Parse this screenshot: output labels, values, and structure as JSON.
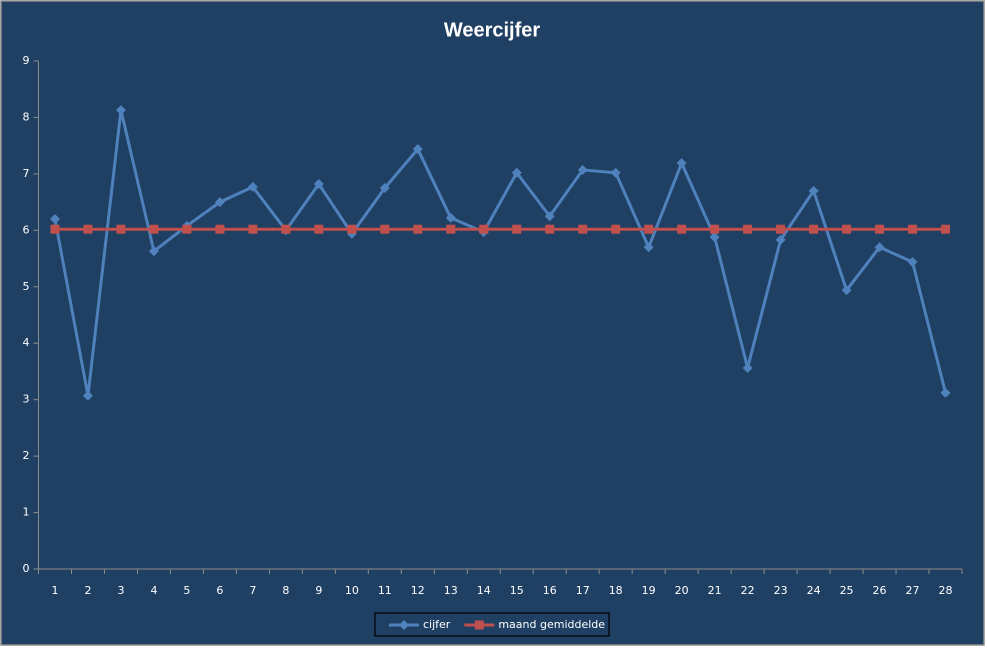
{
  "chart_data": {
    "type": "line",
    "title": "Weercijfer",
    "categories": [
      "1",
      "2",
      "3",
      "4",
      "5",
      "6",
      "7",
      "8",
      "9",
      "10",
      "11",
      "12",
      "13",
      "14",
      "15",
      "16",
      "17",
      "18",
      "19",
      "20",
      "21",
      "22",
      "23",
      "24",
      "25",
      "26",
      "27",
      "28"
    ],
    "series": [
      {
        "name": "cijfer",
        "color": "#4F81BD",
        "marker": "diamond",
        "values": [
          6.2,
          3.07,
          8.13,
          5.63,
          6.08,
          6.5,
          6.77,
          6.0,
          6.82,
          5.94,
          6.75,
          7.44,
          6.22,
          5.97,
          7.02,
          6.25,
          7.07,
          7.02,
          5.7,
          7.19,
          5.88,
          3.56,
          5.83,
          6.7,
          4.94,
          5.7,
          5.44,
          3.12
        ]
      },
      {
        "name": "maand gemiddelde",
        "color": "#C0504D",
        "marker": "square",
        "values": [
          6.02,
          6.02,
          6.02,
          6.02,
          6.02,
          6.02,
          6.02,
          6.02,
          6.02,
          6.02,
          6.02,
          6.02,
          6.02,
          6.02,
          6.02,
          6.02,
          6.02,
          6.02,
          6.02,
          6.02,
          6.02,
          6.02,
          6.02,
          6.02,
          6.02,
          6.02,
          6.02,
          6.02
        ]
      }
    ],
    "ylim": [
      0,
      9
    ],
    "yticks": [
      0,
      1,
      2,
      3,
      4,
      5,
      6,
      7,
      8,
      9
    ],
    "grid": false,
    "legend": "bottom"
  }
}
